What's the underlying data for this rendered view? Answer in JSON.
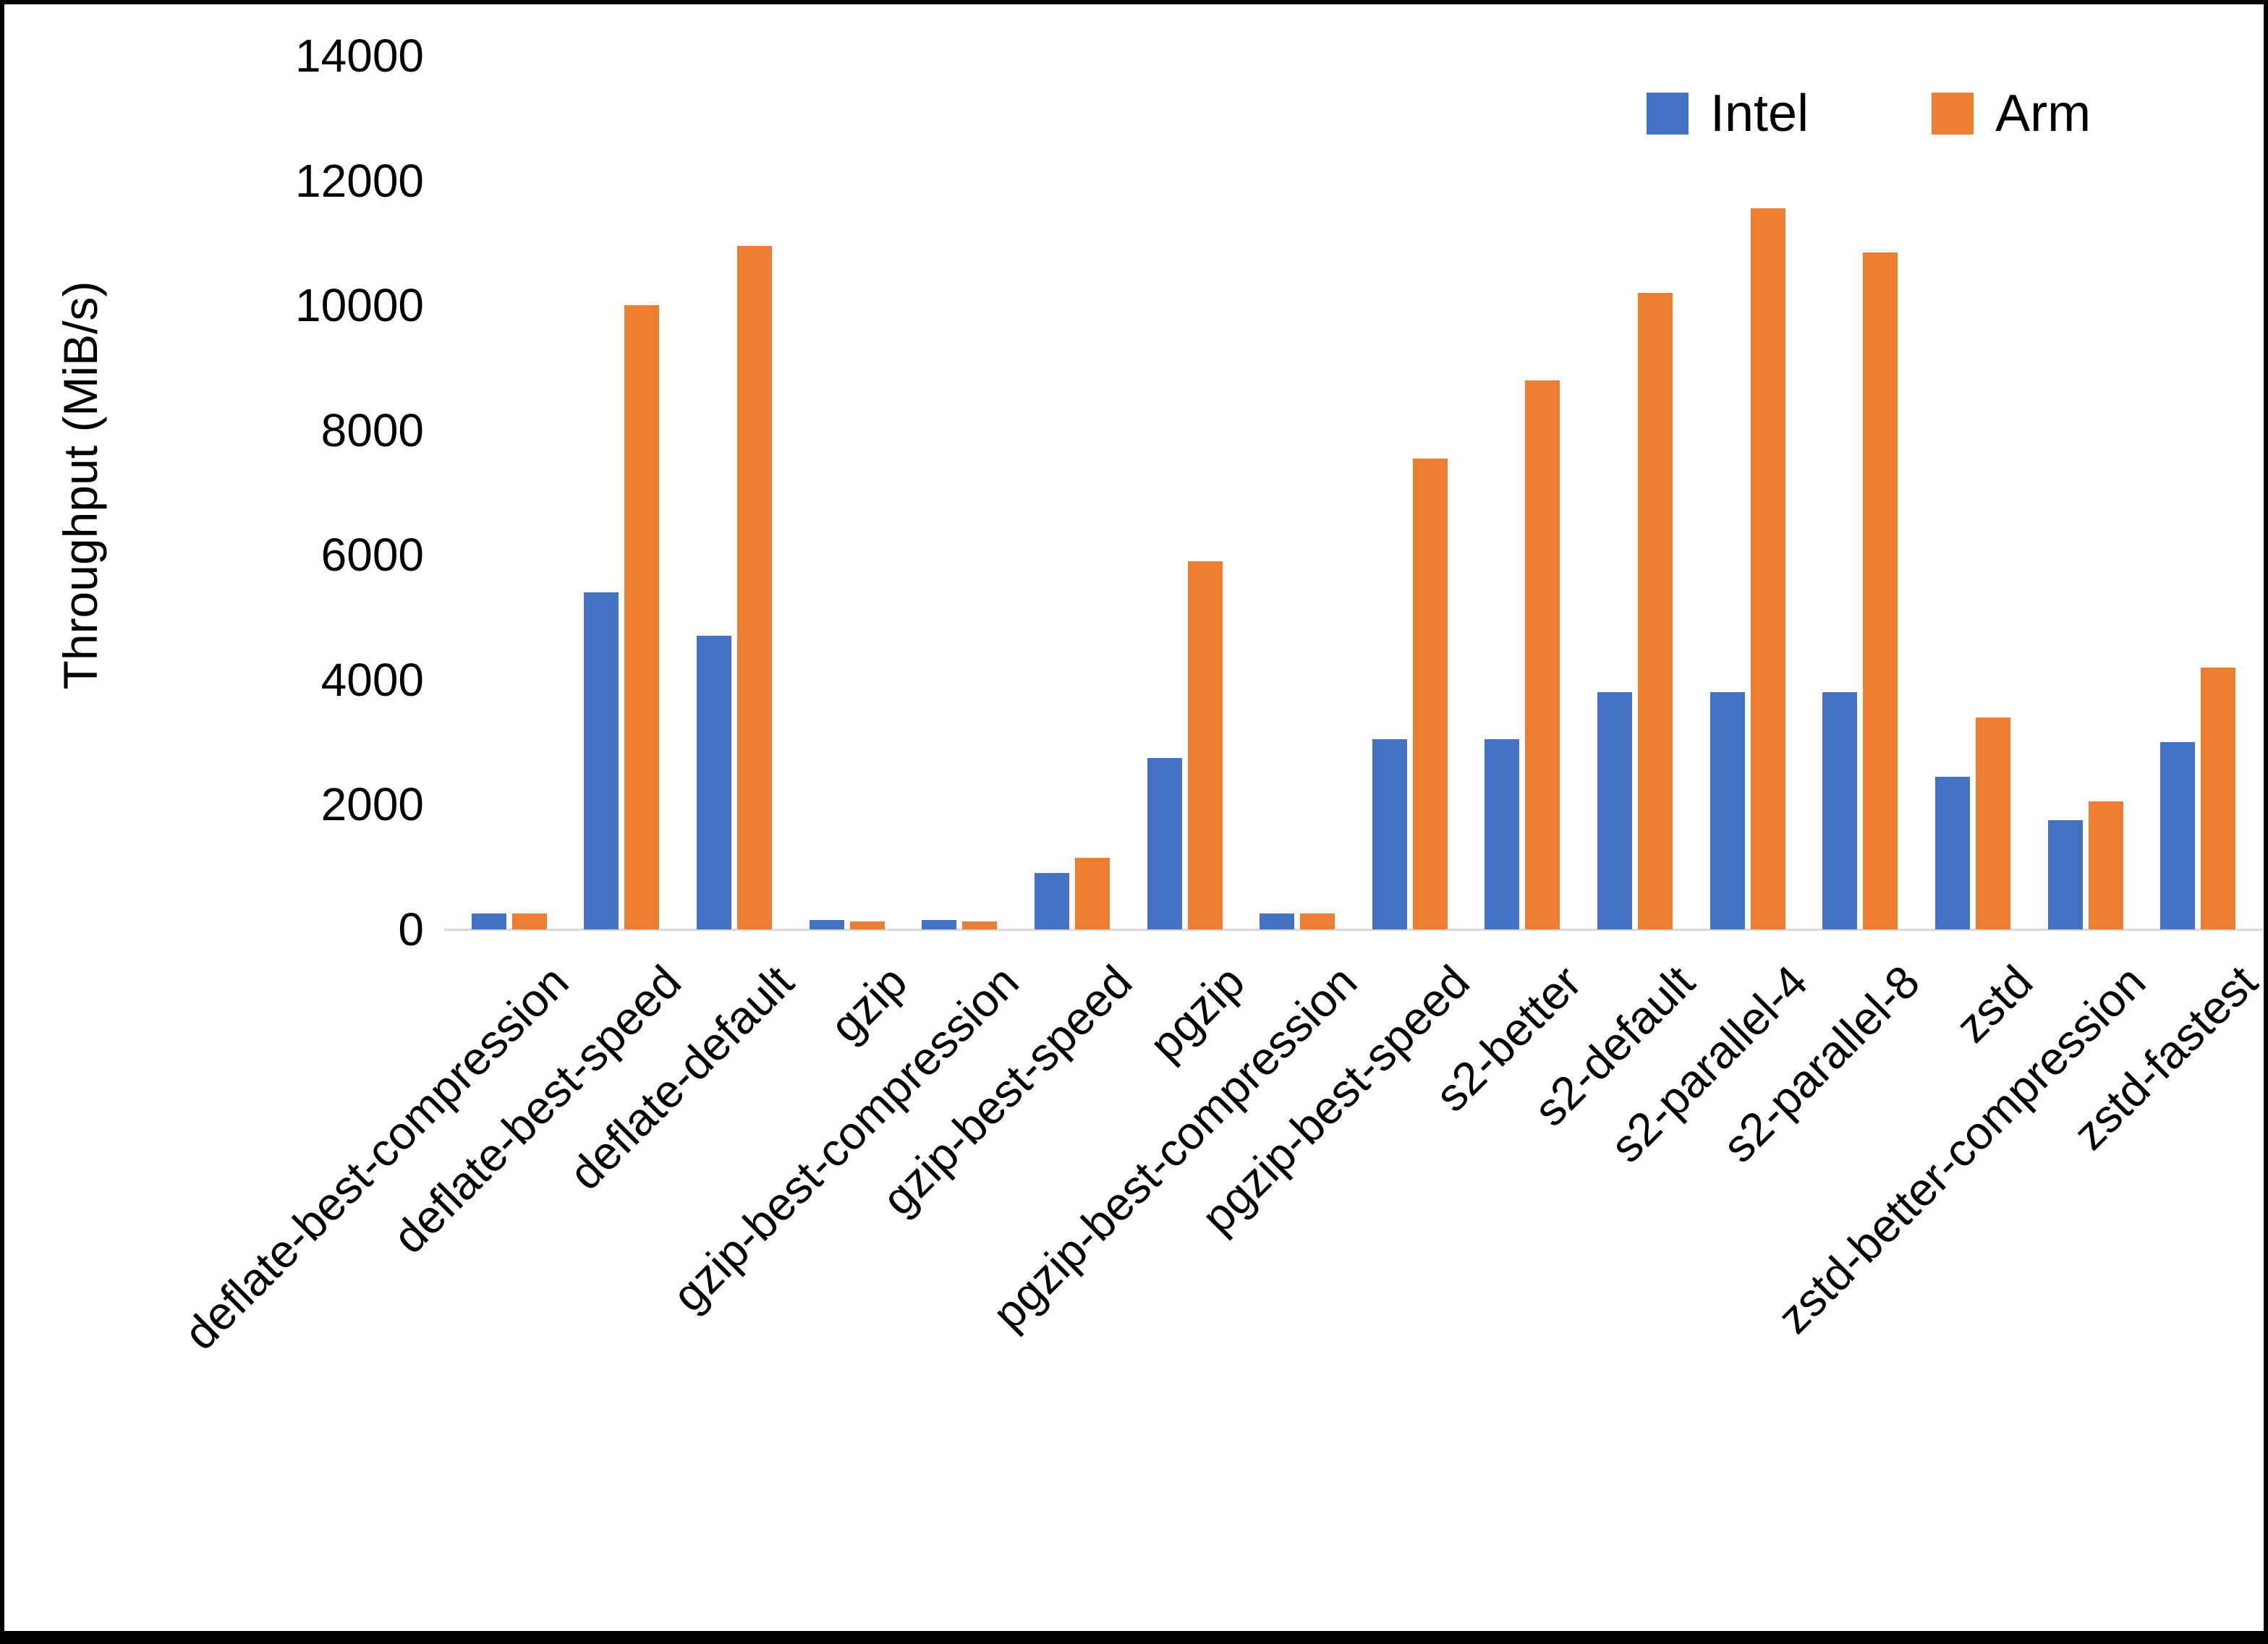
{
  "chart_data": {
    "type": "bar",
    "title": "",
    "xlabel": "",
    "ylabel": "Throughput (MiB/s)",
    "ylim": [
      0,
      14000
    ],
    "yticks": [
      0,
      2000,
      4000,
      6000,
      8000,
      10000,
      12000,
      14000
    ],
    "grid": false,
    "legend_position": "top-right",
    "categories": [
      "deflate-best-compression",
      "deflate-best-speed",
      "deflate-default",
      "gzip",
      "gzip-best-compression",
      "gzip-best-speed",
      "pgzip",
      "pgzip-best-compression",
      "pgzip-best-speed",
      "s2-better",
      "s2-default",
      "s2-parallel-4",
      "s2-parallel-8",
      "zstd",
      "zstd-better-compression",
      "zstd-fastest"
    ],
    "series": [
      {
        "name": "Intel",
        "color": "#4472C4",
        "values": [
          260,
          5400,
          4700,
          150,
          150,
          900,
          2750,
          250,
          3050,
          3050,
          3800,
          3800,
          3800,
          2450,
          1750,
          3000
        ]
      },
      {
        "name": "Arm",
        "color": "#ED7D31",
        "values": [
          260,
          10000,
          10950,
          130,
          130,
          1150,
          5900,
          250,
          7550,
          8800,
          10200,
          11550,
          10850,
          3400,
          2050,
          4200
        ]
      }
    ]
  }
}
